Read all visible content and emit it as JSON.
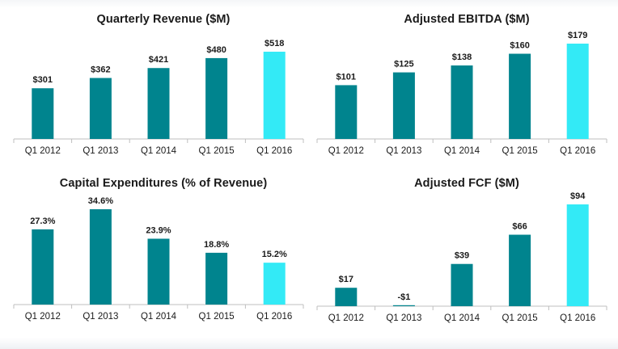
{
  "colors": {
    "historical": "#00848E",
    "latest": "#33EAF6"
  },
  "chart_data": [
    {
      "type": "bar",
      "title": "Quarterly Revenue ($M)",
      "categories": [
        "Q1 2012",
        "Q1 2013",
        "Q1 2014",
        "Q1 2015",
        "Q1 2016"
      ],
      "values": [
        301,
        362,
        421,
        480,
        518
      ],
      "labels": [
        "$301",
        "$362",
        "$421",
        "$480",
        "$518"
      ],
      "ylim": [
        0,
        600
      ]
    },
    {
      "type": "bar",
      "title": "Adjusted EBITDA  ($M)",
      "categories": [
        "Q1 2012",
        "Q1 2013",
        "Q1 2014",
        "Q1 2015",
        "Q1 2016"
      ],
      "values": [
        101,
        125,
        138,
        160,
        179
      ],
      "labels": [
        "$101",
        "$125",
        "$138",
        "$160",
        "$179"
      ],
      "ylim": [
        0,
        200
      ]
    },
    {
      "type": "bar",
      "title": "Capital Expenditures (% of Revenue)",
      "categories": [
        "Q1 2012",
        "Q1 2013",
        "Q1 2014",
        "Q1 2015",
        "Q1 2016"
      ],
      "values": [
        27.3,
        34.6,
        23.9,
        18.8,
        15.2
      ],
      "labels": [
        "27.3%",
        "34.6%",
        "23.9%",
        "18.8%",
        "15.2%"
      ],
      "ylim": [
        0,
        35
      ]
    },
    {
      "type": "bar",
      "title": "Adjusted FCF  ($M)",
      "categories": [
        "Q1 2012",
        "Q1 2013",
        "Q1 2014",
        "Q1 2015",
        "Q1 2016"
      ],
      "values": [
        17,
        -1,
        39,
        66,
        94
      ],
      "labels": [
        "$17",
        "-$1",
        "$39",
        "$66",
        "$94"
      ],
      "ylim": [
        0,
        100
      ]
    }
  ]
}
